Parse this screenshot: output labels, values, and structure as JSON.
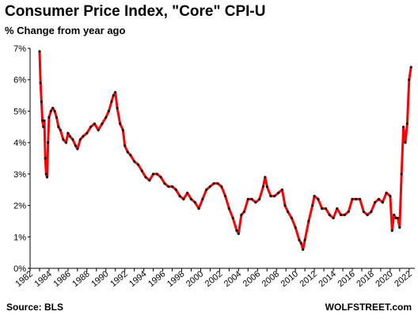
{
  "title": "Consumer  Price Index, \"Core\"  CPI-U",
  "subtitle": "% Change from year ago",
  "source": "Source: BLS",
  "brand": "WOLFSTREET.com",
  "colors": {
    "line": "#ff0000",
    "marker": "#111111",
    "axis": "#000000"
  },
  "chart_data": {
    "type": "line",
    "title": "Consumer  Price Index, \"Core\"  CPI-U",
    "ylabel": "% Change from year ago",
    "xlim": [
      1982,
      2022.6
    ],
    "ylim": [
      0,
      7
    ],
    "y_ticks": [
      "0%",
      "1%",
      "2%",
      "3%",
      "4%",
      "5%",
      "6%",
      "7%"
    ],
    "x_ticks": [
      "1982",
      "1984",
      "1986",
      "1988",
      "1990",
      "1992",
      "1994",
      "1996",
      "1998",
      "2000",
      "2002",
      "2004",
      "2006",
      "2008",
      "2010",
      "2012",
      "2014",
      "2016",
      "2018",
      "2020",
      "2022"
    ],
    "grid": false,
    "series": [
      {
        "x": [
          1983.0,
          1983.1,
          1983.2,
          1983.3,
          1983.4,
          1983.5,
          1983.6,
          1983.7,
          1983.8,
          1983.9,
          1984.0,
          1984.2,
          1984.4,
          1984.6,
          1984.8,
          1985.0,
          1985.2,
          1985.5,
          1985.8,
          1986.0,
          1986.2,
          1986.5,
          1986.8,
          1987.0,
          1987.3,
          1987.6,
          1988.0,
          1988.4,
          1988.8,
          1989.2,
          1989.6,
          1990.0,
          1990.3,
          1990.6,
          1990.8,
          1991.0,
          1991.2,
          1991.5,
          1991.8,
          1992.0,
          1992.3,
          1992.6,
          1993.0,
          1993.4,
          1993.8,
          1994.2,
          1994.6,
          1995.0,
          1995.4,
          1995.8,
          1996.2,
          1996.6,
          1997.0,
          1997.4,
          1997.8,
          1998.2,
          1998.6,
          1999.0,
          1999.4,
          1999.8,
          2000.2,
          2000.6,
          2001.0,
          2001.4,
          2001.8,
          2002.2,
          2002.6,
          2003.0,
          2003.4,
          2003.8,
          2004.0,
          2004.3,
          2004.6,
          2005.0,
          2005.4,
          2005.8,
          2006.2,
          2006.6,
          2006.8,
          2007.0,
          2007.4,
          2007.8,
          2008.2,
          2008.6,
          2008.9,
          2009.2,
          2009.6,
          2010.0,
          2010.4,
          2010.6,
          2010.8,
          2011.0,
          2011.4,
          2011.8,
          2012.0,
          2012.4,
          2012.8,
          2013.2,
          2013.6,
          2014.0,
          2014.4,
          2014.8,
          2015.2,
          2015.6,
          2016.0,
          2016.4,
          2016.8,
          2017.2,
          2017.6,
          2018.0,
          2018.4,
          2018.8,
          2019.2,
          2019.6,
          2020.0,
          2020.2,
          2020.4,
          2020.6,
          2020.8,
          2021.0,
          2021.2,
          2021.4,
          2021.6,
          2021.8,
          2022.0,
          2022.2
        ],
        "y": [
          6.9,
          5.9,
          5.3,
          4.7,
          4.5,
          4.7,
          3.5,
          3.0,
          2.9,
          4.0,
          4.8,
          5.0,
          5.1,
          5.0,
          4.8,
          4.5,
          4.4,
          4.1,
          4.0,
          4.3,
          4.2,
          4.1,
          3.9,
          3.8,
          4.1,
          4.2,
          4.3,
          4.5,
          4.6,
          4.4,
          4.6,
          4.8,
          5.0,
          5.3,
          5.5,
          5.6,
          5.1,
          4.6,
          4.4,
          3.9,
          3.7,
          3.6,
          3.4,
          3.3,
          3.1,
          2.9,
          2.8,
          3.0,
          3.0,
          2.9,
          2.7,
          2.6,
          2.6,
          2.5,
          2.3,
          2.2,
          2.4,
          2.2,
          2.1,
          1.9,
          2.2,
          2.5,
          2.6,
          2.7,
          2.7,
          2.6,
          2.3,
          1.9,
          1.6,
          1.2,
          1.1,
          1.7,
          1.8,
          2.2,
          2.2,
          2.1,
          2.2,
          2.6,
          2.9,
          2.6,
          2.3,
          2.3,
          2.4,
          2.5,
          2.0,
          1.8,
          1.6,
          1.3,
          0.9,
          0.8,
          0.6,
          0.9,
          1.5,
          2.0,
          2.3,
          2.2,
          1.9,
          1.9,
          1.7,
          1.6,
          1.9,
          1.7,
          1.7,
          1.8,
          2.2,
          2.2,
          2.2,
          1.8,
          1.7,
          1.8,
          2.1,
          2.2,
          2.1,
          2.4,
          2.3,
          1.2,
          1.7,
          1.6,
          1.6,
          1.3,
          3.0,
          4.5,
          4.0,
          4.6,
          6.0,
          6.4
        ]
      }
    ]
  }
}
